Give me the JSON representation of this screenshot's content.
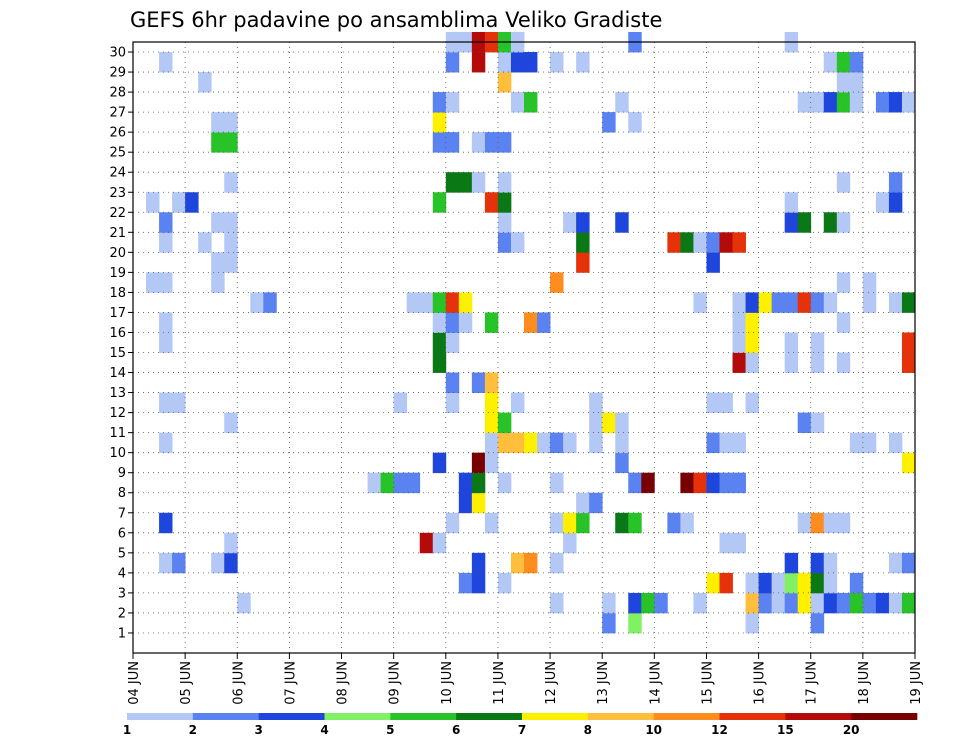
{
  "chart_data": {
    "type": "heatmap",
    "title": "GEFS 6hr padavine po ansamblima Veliko Gradiste",
    "x_tick_labels": [
      "04 JUN",
      "05 JUN",
      "06 JUN",
      "07 JUN",
      "08 JUN",
      "09 JUN",
      "10 JUN",
      "11 JUN",
      "12 JUN",
      "13 JUN",
      "14 JUN",
      "15 JUN",
      "16 JUN",
      "17 JUN",
      "18 JUN",
      "19 JUN"
    ],
    "y_tick_labels": [
      "1",
      "2",
      "3",
      "4",
      "5",
      "6",
      "7",
      "8",
      "9",
      "10",
      "11",
      "12",
      "13",
      "14",
      "15",
      "16",
      "17",
      "18",
      "19",
      "20",
      "21",
      "22",
      "23",
      "24",
      "25",
      "26",
      "27",
      "28",
      "29",
      "30"
    ],
    "n_members": 30,
    "n_steps": 60,
    "step_hours": 6,
    "grid": true,
    "colorbar": {
      "labels": [
        "1",
        "2",
        "3",
        "4",
        "5",
        "6",
        "7",
        "8",
        "10",
        "12",
        "15",
        "20"
      ],
      "colors": [
        "#b4c8f5",
        "#5a82f0",
        "#1e46dc",
        "#82f064",
        "#28c328",
        "#0a7814",
        "#fff000",
        "#ffbe3c",
        "#ff8c1e",
        "#e6320a",
        "#b40a0a",
        "#780000"
      ]
    },
    "cells": [
      [
        1,
        37,
        2
      ],
      [
        1,
        39,
        4
      ],
      [
        1,
        48,
        1
      ],
      [
        1,
        53,
        2
      ],
      [
        2,
        9,
        1
      ],
      [
        2,
        33,
        1
      ],
      [
        2,
        37,
        1
      ],
      [
        2,
        39,
        3
      ],
      [
        2,
        40,
        5
      ],
      [
        2,
        41,
        2
      ],
      [
        2,
        44,
        1
      ],
      [
        2,
        48,
        8
      ],
      [
        2,
        49,
        2
      ],
      [
        2,
        50,
        1
      ],
      [
        2,
        51,
        2
      ],
      [
        2,
        52,
        7
      ],
      [
        2,
        53,
        1
      ],
      [
        2,
        54,
        3
      ],
      [
        2,
        55,
        2
      ],
      [
        2,
        56,
        5
      ],
      [
        2,
        57,
        2
      ],
      [
        2,
        58,
        3
      ],
      [
        2,
        59,
        1
      ],
      [
        2,
        60,
        5
      ],
      [
        3,
        26,
        2
      ],
      [
        3,
        27,
        3
      ],
      [
        3,
        29,
        1
      ],
      [
        3,
        45,
        7
      ],
      [
        3,
        46,
        10
      ],
      [
        3,
        48,
        1
      ],
      [
        3,
        49,
        3
      ],
      [
        3,
        50,
        1
      ],
      [
        3,
        51,
        4
      ],
      [
        3,
        52,
        7
      ],
      [
        3,
        53,
        6
      ],
      [
        3,
        54,
        1
      ],
      [
        3,
        56,
        2
      ],
      [
        4,
        3,
        1
      ],
      [
        4,
        4,
        2
      ],
      [
        4,
        7,
        1
      ],
      [
        4,
        8,
        3
      ],
      [
        4,
        27,
        3
      ],
      [
        4,
        30,
        8
      ],
      [
        4,
        31,
        9
      ],
      [
        4,
        33,
        1
      ],
      [
        4,
        51,
        3
      ],
      [
        4,
        53,
        3
      ],
      [
        4,
        54,
        1
      ],
      [
        4,
        59,
        1
      ],
      [
        4,
        60,
        2
      ],
      [
        5,
        8,
        1
      ],
      [
        5,
        23,
        11
      ],
      [
        5,
        24,
        1
      ],
      [
        5,
        34,
        1
      ],
      [
        5,
        46,
        1
      ],
      [
        5,
        47,
        1
      ],
      [
        6,
        3,
        3
      ],
      [
        6,
        25,
        1
      ],
      [
        6,
        28,
        1
      ],
      [
        6,
        33,
        1
      ],
      [
        6,
        34,
        7
      ],
      [
        6,
        35,
        5
      ],
      [
        6,
        38,
        6
      ],
      [
        6,
        39,
        5
      ],
      [
        6,
        42,
        2
      ],
      [
        6,
        43,
        1
      ],
      [
        6,
        52,
        1
      ],
      [
        6,
        53,
        9
      ],
      [
        6,
        54,
        1
      ],
      [
        6,
        55,
        1
      ],
      [
        7,
        26,
        3
      ],
      [
        7,
        27,
        7
      ],
      [
        7,
        35,
        1
      ],
      [
        7,
        36,
        2
      ],
      [
        8,
        19,
        1
      ],
      [
        8,
        20,
        5
      ],
      [
        8,
        21,
        2
      ],
      [
        8,
        22,
        2
      ],
      [
        8,
        26,
        3
      ],
      [
        8,
        27,
        6
      ],
      [
        8,
        29,
        1
      ],
      [
        8,
        33,
        1
      ],
      [
        8,
        39,
        2
      ],
      [
        8,
        40,
        12
      ],
      [
        8,
        43,
        12
      ],
      [
        8,
        44,
        10
      ],
      [
        8,
        45,
        3
      ],
      [
        8,
        46,
        2
      ],
      [
        8,
        47,
        2
      ],
      [
        9,
        24,
        3
      ],
      [
        9,
        27,
        12
      ],
      [
        9,
        28,
        1
      ],
      [
        9,
        38,
        2
      ],
      [
        9,
        60,
        7
      ],
      [
        10,
        3,
        1
      ],
      [
        10,
        28,
        1
      ],
      [
        10,
        29,
        8
      ],
      [
        10,
        30,
        8
      ],
      [
        10,
        31,
        7
      ],
      [
        10,
        32,
        1
      ],
      [
        10,
        33,
        2
      ],
      [
        10,
        34,
        1
      ],
      [
        10,
        36,
        1
      ],
      [
        10,
        38,
        1
      ],
      [
        10,
        45,
        2
      ],
      [
        10,
        46,
        1
      ],
      [
        10,
        47,
        1
      ],
      [
        10,
        56,
        1
      ],
      [
        10,
        57,
        1
      ],
      [
        10,
        59,
        1
      ],
      [
        11,
        8,
        1
      ],
      [
        11,
        28,
        7
      ],
      [
        11,
        29,
        5
      ],
      [
        11,
        36,
        1
      ],
      [
        11,
        37,
        7
      ],
      [
        11,
        38,
        1
      ],
      [
        11,
        52,
        2
      ],
      [
        11,
        53,
        1
      ],
      [
        12,
        3,
        1
      ],
      [
        12,
        4,
        1
      ],
      [
        12,
        21,
        1
      ],
      [
        12,
        25,
        1
      ],
      [
        12,
        28,
        7
      ],
      [
        12,
        30,
        1
      ],
      [
        12,
        36,
        1
      ],
      [
        12,
        45,
        1
      ],
      [
        12,
        46,
        1
      ],
      [
        12,
        48,
        1
      ],
      [
        13,
        25,
        2
      ],
      [
        13,
        27,
        2
      ],
      [
        13,
        28,
        8
      ],
      [
        14,
        24,
        6
      ],
      [
        14,
        47,
        11
      ],
      [
        14,
        48,
        1
      ],
      [
        14,
        51,
        1
      ],
      [
        14,
        53,
        1
      ],
      [
        14,
        55,
        1
      ],
      [
        14,
        60,
        10
      ],
      [
        15,
        3,
        1
      ],
      [
        15,
        24,
        6
      ],
      [
        15,
        25,
        1
      ],
      [
        15,
        47,
        1
      ],
      [
        15,
        48,
        7
      ],
      [
        15,
        51,
        1
      ],
      [
        15,
        53,
        1
      ],
      [
        15,
        60,
        10
      ],
      [
        16,
        3,
        1
      ],
      [
        16,
        24,
        1
      ],
      [
        16,
        25,
        2
      ],
      [
        16,
        26,
        1
      ],
      [
        16,
        28,
        5
      ],
      [
        16,
        31,
        9
      ],
      [
        16,
        32,
        2
      ],
      [
        16,
        47,
        1
      ],
      [
        16,
        48,
        7
      ],
      [
        16,
        55,
        1
      ],
      [
        17,
        10,
        1
      ],
      [
        17,
        11,
        2
      ],
      [
        17,
        22,
        1
      ],
      [
        17,
        23,
        1
      ],
      [
        17,
        24,
        5
      ],
      [
        17,
        25,
        10
      ],
      [
        17,
        26,
        7
      ],
      [
        17,
        44,
        1
      ],
      [
        17,
        47,
        1
      ],
      [
        17,
        48,
        3
      ],
      [
        17,
        49,
        7
      ],
      [
        17,
        50,
        2
      ],
      [
        17,
        51,
        2
      ],
      [
        17,
        52,
        10
      ],
      [
        17,
        53,
        2
      ],
      [
        17,
        54,
        1
      ],
      [
        17,
        57,
        1
      ],
      [
        17,
        59,
        1
      ],
      [
        17,
        60,
        6
      ],
      [
        18,
        2,
        1
      ],
      [
        18,
        3,
        1
      ],
      [
        18,
        7,
        1
      ],
      [
        18,
        33,
        9
      ],
      [
        18,
        55,
        1
      ],
      [
        18,
        57,
        1
      ],
      [
        19,
        7,
        1
      ],
      [
        19,
        8,
        1
      ],
      [
        19,
        35,
        10
      ],
      [
        19,
        45,
        3
      ],
      [
        20,
        3,
        1
      ],
      [
        20,
        6,
        1
      ],
      [
        20,
        8,
        1
      ],
      [
        20,
        29,
        2
      ],
      [
        20,
        30,
        1
      ],
      [
        20,
        35,
        6
      ],
      [
        20,
        42,
        10
      ],
      [
        20,
        43,
        6
      ],
      [
        20,
        44,
        1
      ],
      [
        20,
        45,
        2
      ],
      [
        20,
        46,
        11
      ],
      [
        20,
        47,
        10
      ],
      [
        21,
        3,
        2
      ],
      [
        21,
        7,
        1
      ],
      [
        21,
        8,
        1
      ],
      [
        21,
        29,
        1
      ],
      [
        21,
        34,
        1
      ],
      [
        21,
        35,
        3
      ],
      [
        21,
        38,
        3
      ],
      [
        21,
        51,
        3
      ],
      [
        21,
        52,
        6
      ],
      [
        21,
        54,
        6
      ],
      [
        21,
        55,
        1
      ],
      [
        22,
        2,
        1
      ],
      [
        22,
        4,
        1
      ],
      [
        22,
        5,
        3
      ],
      [
        22,
        24,
        5
      ],
      [
        22,
        28,
        10
      ],
      [
        22,
        29,
        6
      ],
      [
        22,
        51,
        1
      ],
      [
        22,
        58,
        1
      ],
      [
        22,
        59,
        3
      ],
      [
        23,
        8,
        1
      ],
      [
        23,
        25,
        6
      ],
      [
        23,
        26,
        6
      ],
      [
        23,
        27,
        1
      ],
      [
        23,
        29,
        1
      ],
      [
        23,
        55,
        1
      ],
      [
        23,
        59,
        2
      ],
      [
        25,
        7,
        5
      ],
      [
        25,
        8,
        5
      ],
      [
        25,
        24,
        2
      ],
      [
        25,
        25,
        2
      ],
      [
        25,
        27,
        1
      ],
      [
        25,
        28,
        2
      ],
      [
        25,
        29,
        2
      ],
      [
        26,
        7,
        1
      ],
      [
        26,
        8,
        1
      ],
      [
        26,
        24,
        7
      ],
      [
        26,
        37,
        2
      ],
      [
        26,
        39,
        1
      ],
      [
        27,
        24,
        2
      ],
      [
        27,
        25,
        1
      ],
      [
        27,
        30,
        1
      ],
      [
        27,
        31,
        5
      ],
      [
        27,
        38,
        1
      ],
      [
        27,
        52,
        1
      ],
      [
        27,
        53,
        1
      ],
      [
        27,
        54,
        3
      ],
      [
        27,
        55,
        5
      ],
      [
        27,
        56,
        1
      ],
      [
        27,
        58,
        2
      ],
      [
        27,
        59,
        3
      ],
      [
        27,
        60,
        1
      ],
      [
        28,
        6,
        1
      ],
      [
        28,
        29,
        8
      ],
      [
        28,
        55,
        1
      ],
      [
        28,
        56,
        1
      ],
      [
        29,
        3,
        1
      ],
      [
        29,
        25,
        2
      ],
      [
        29,
        27,
        11
      ],
      [
        29,
        29,
        1
      ],
      [
        29,
        30,
        3
      ],
      [
        29,
        31,
        3
      ],
      [
        29,
        33,
        1
      ],
      [
        29,
        35,
        1
      ],
      [
        29,
        54,
        1
      ],
      [
        29,
        55,
        5
      ],
      [
        29,
        56,
        2
      ],
      [
        30,
        25,
        1
      ],
      [
        30,
        26,
        1
      ],
      [
        30,
        27,
        11
      ],
      [
        30,
        28,
        10
      ],
      [
        30,
        29,
        5
      ],
      [
        30,
        30,
        1
      ],
      [
        30,
        39,
        2
      ],
      [
        30,
        51,
        1
      ]
    ]
  }
}
